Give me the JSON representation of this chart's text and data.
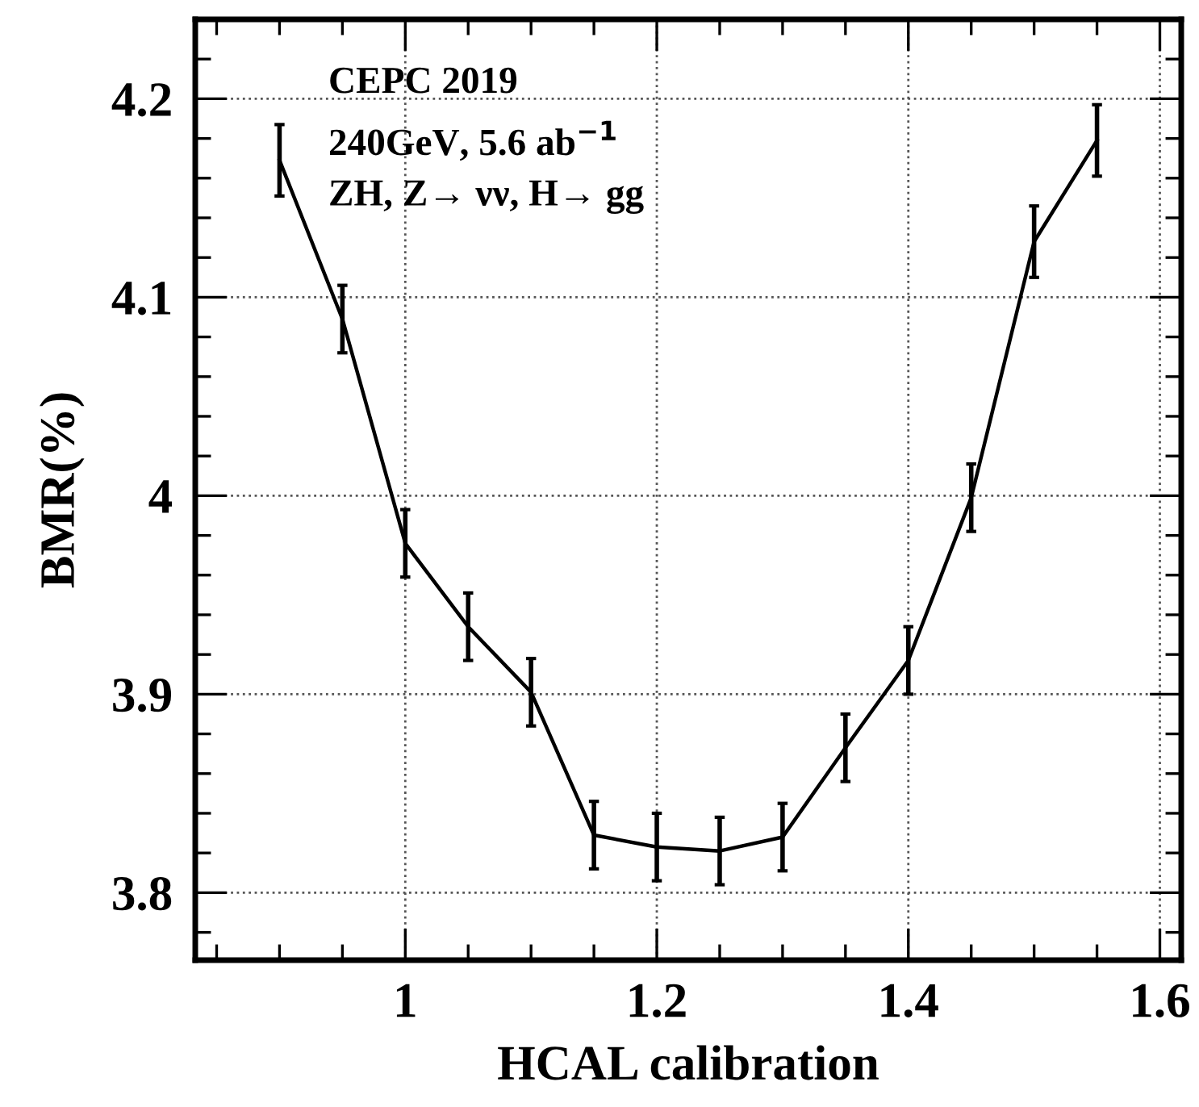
{
  "chart_data": {
    "type": "line",
    "xlabel": "HCAL calibration",
    "ylabel": "BMR(%)",
    "annotations": [
      "CEPC 2019",
      "240GeV, 5.6 ab$^{−1}$",
      "ZH, Z→ νν, H→ gg"
    ],
    "x": [
      0.9,
      0.95,
      1.0,
      1.05,
      1.1,
      1.15,
      1.2,
      1.25,
      1.3,
      1.35,
      1.4,
      1.45,
      1.5,
      1.55
    ],
    "series": [
      {
        "color": "#000000",
        "values": [
          4.169,
          4.089,
          3.976,
          3.934,
          3.901,
          3.829,
          3.823,
          3.821,
          3.828,
          3.873,
          3.917,
          3.999,
          4.128,
          4.179
        ],
        "errors": [
          0.018,
          0.017,
          0.017,
          0.017,
          0.017,
          0.017,
          0.017,
          0.017,
          0.017,
          0.017,
          0.017,
          0.017,
          0.018,
          0.018
        ]
      }
    ],
    "xlim": [
      0.833,
      1.617
    ],
    "xticks": [
      1,
      1.2,
      1.4,
      1.6
    ],
    "ylim": [
      3.766,
      4.24
    ],
    "yticks": [
      3.8,
      3.9,
      4,
      4.1,
      4.2
    ],
    "grid": true,
    "marker": "none",
    "line_style": "solid"
  }
}
